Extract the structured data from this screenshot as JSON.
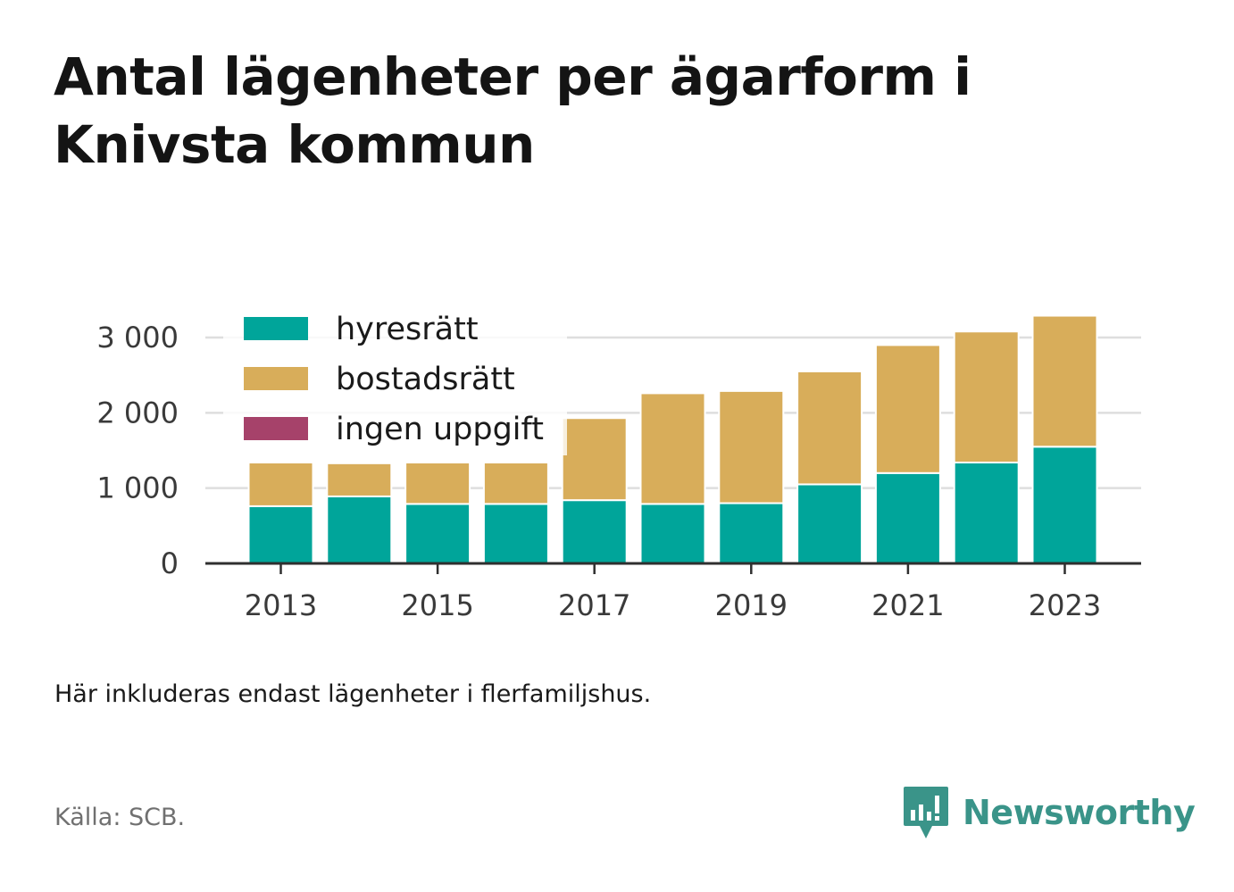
{
  "title": "Antal lägenheter per ägarform i Knivsta kommun",
  "note": "Här inkluderas endast lägenheter i flerfamiljshus.",
  "source": "Källa: SCB.",
  "brand": {
    "name": "Newsworthy",
    "icon": "newsworthy-logo-icon",
    "color": "#3a9489"
  },
  "chart_data": {
    "type": "bar",
    "stacked": true,
    "categories": [
      "2013",
      "2014",
      "2015",
      "2016",
      "2017",
      "2018",
      "2019",
      "2020",
      "2021",
      "2022",
      "2023"
    ],
    "x_tick_labels": [
      "2013",
      "2015",
      "2017",
      "2019",
      "2021",
      "2023"
    ],
    "y_tick_labels": [
      "0",
      "1 000",
      "2 000",
      "3 000"
    ],
    "y_ticks": [
      0,
      1000,
      2000,
      3000
    ],
    "ylim": [
      0,
      3300
    ],
    "grid": true,
    "legend_position": "top-left",
    "series": [
      {
        "name": "hyresrätt",
        "color": "#00a59a",
        "values": [
          760,
          890,
          790,
          790,
          840,
          790,
          800,
          1050,
          1200,
          1340,
          1550
        ]
      },
      {
        "name": "bostadsrätt",
        "color": "#d8ad5a",
        "values": [
          580,
          440,
          550,
          550,
          1090,
          1470,
          1490,
          1500,
          1700,
          1740,
          1740
        ]
      },
      {
        "name": "ingen uppgift",
        "color": "#a6426a",
        "values": [
          0,
          0,
          0,
          0,
          0,
          0,
          0,
          0,
          0,
          0,
          0
        ]
      }
    ]
  }
}
